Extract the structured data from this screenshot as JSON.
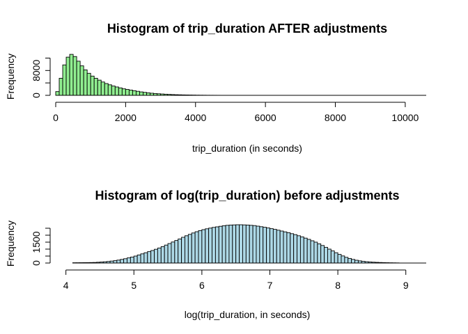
{
  "chart_data": [
    {
      "type": "bar",
      "title": "Histogram of trip_duration AFTER adjustments",
      "xlabel": "trip_duration (in seconds)",
      "ylabel": "Frequency",
      "xlim": [
        0,
        10600
      ],
      "ylim": [
        0,
        13000
      ],
      "x_ticks": [
        0,
        2000,
        4000,
        6000,
        8000,
        10000
      ],
      "y_ticks": [
        0,
        8000
      ],
      "y_minor_ticks": [
        0,
        4000,
        8000,
        12000
      ],
      "bar_color": "#90ee90",
      "bin_width": 100,
      "bin_start": 0,
      "values": [
        1200,
        5500,
        9800,
        12300,
        13200,
        12500,
        11000,
        9500,
        8200,
        7100,
        6200,
        5500,
        4900,
        4300,
        3800,
        3400,
        3000,
        2700,
        2400,
        2100,
        1900,
        1700,
        1500,
        1300,
        1100,
        950,
        800,
        680,
        580,
        500,
        430,
        360,
        300,
        250,
        200,
        170,
        140,
        120,
        100,
        80,
        60,
        50,
        40,
        30,
        25,
        20,
        15,
        10,
        8,
        6
      ]
    },
    {
      "type": "bar",
      "title": "Histogram of log(trip_duration) before adjustments",
      "xlabel": "log(trip_duration, in seconds)",
      "ylabel": "Frequency",
      "xlim": [
        3.85,
        9.3
      ],
      "ylim": [
        0,
        2900
      ],
      "x_ticks": [
        4,
        5,
        6,
        7,
        8,
        9
      ],
      "y_ticks": [
        0,
        1500
      ],
      "y_minor_ticks": [
        0,
        500,
        1000,
        1500,
        2000,
        2500
      ],
      "bar_color": "#add8e6",
      "bin_width": 0.05,
      "bin_start": 4.1,
      "values": [
        20,
        22,
        25,
        28,
        30,
        35,
        40,
        55,
        70,
        90,
        110,
        140,
        170,
        210,
        260,
        310,
        370,
        430,
        500,
        580,
        660,
        740,
        820,
        900,
        990,
        1080,
        1180,
        1290,
        1400,
        1510,
        1620,
        1730,
        1850,
        1960,
        2060,
        2160,
        2250,
        2330,
        2400,
        2460,
        2510,
        2560,
        2600,
        2640,
        2680,
        2710,
        2730,
        2740,
        2750,
        2750,
        2740,
        2730,
        2710,
        2690,
        2650,
        2610,
        2570,
        2520,
        2470,
        2420,
        2360,
        2300,
        2240,
        2180,
        2110,
        2040,
        1960,
        1880,
        1790,
        1700,
        1600,
        1500,
        1380,
        1260,
        1130,
        1000,
        870,
        740,
        620,
        510,
        410,
        330,
        260,
        200,
        155,
        120,
        95,
        75,
        60,
        48,
        38,
        30,
        24,
        18,
        14,
        10
      ]
    }
  ]
}
